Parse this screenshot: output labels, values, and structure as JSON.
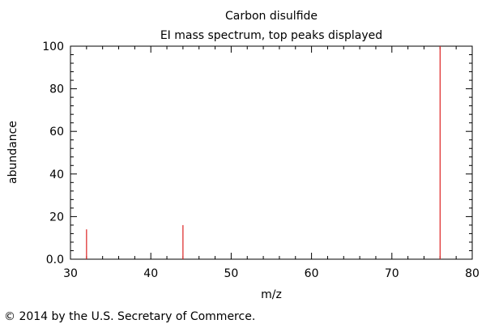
{
  "chart_data": {
    "type": "bar",
    "title": "Carbon disulfide",
    "subtitle": "EI mass spectrum, top peaks displayed",
    "xlabel": "m/z",
    "ylabel": "abundance",
    "xlim": [
      30,
      80
    ],
    "ylim": [
      0,
      100
    ],
    "x_ticks": [
      30,
      40,
      50,
      60,
      70,
      80
    ],
    "y_ticks": [
      0,
      20,
      40,
      60,
      80,
      100
    ],
    "y_tick_labels": [
      "0.0",
      "20",
      "40",
      "60",
      "80",
      "100"
    ],
    "peaks": [
      {
        "x": 32,
        "y": 14
      },
      {
        "x": 44,
        "y": 16
      },
      {
        "x": 76,
        "y": 100
      }
    ],
    "peak_color": "#dd2222",
    "grid": false
  },
  "footer": {
    "copyright": "© 2014 by the U.S. Secretary of Commerce."
  }
}
